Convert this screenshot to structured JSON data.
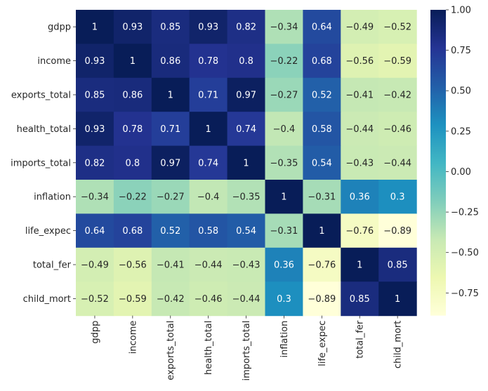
{
  "chart_data": {
    "type": "heatmap",
    "title": "",
    "xlabel": "",
    "ylabel": "",
    "x_categories": [
      "gdpp",
      "income",
      "exports_total",
      "health_total",
      "imports_total",
      "inflation",
      "life_expec",
      "total_fer",
      "child_mort"
    ],
    "y_categories": [
      "gdpp",
      "income",
      "exports_total",
      "health_total",
      "imports_total",
      "inflation",
      "life_expec",
      "total_fer",
      "child_mort"
    ],
    "values": [
      [
        1,
        0.93,
        0.85,
        0.93,
        0.82,
        -0.34,
        0.64,
        -0.49,
        -0.52
      ],
      [
        0.93,
        1,
        0.86,
        0.78,
        0.8,
        -0.22,
        0.68,
        -0.56,
        -0.59
      ],
      [
        0.85,
        0.86,
        1,
        0.71,
        0.97,
        -0.27,
        0.52,
        -0.41,
        -0.42
      ],
      [
        0.93,
        0.78,
        0.71,
        1,
        0.74,
        -0.4,
        0.58,
        -0.44,
        -0.46
      ],
      [
        0.82,
        0.8,
        0.97,
        0.74,
        1,
        -0.35,
        0.54,
        -0.43,
        -0.44
      ],
      [
        -0.34,
        -0.22,
        -0.27,
        -0.4,
        -0.35,
        1,
        -0.31,
        0.36,
        0.3
      ],
      [
        0.64,
        0.68,
        0.52,
        0.58,
        0.54,
        -0.31,
        1,
        -0.76,
        -0.89
      ],
      [
        -0.49,
        -0.56,
        -0.41,
        -0.44,
        -0.43,
        0.36,
        -0.76,
        1,
        0.85
      ],
      [
        -0.52,
        -0.59,
        -0.42,
        -0.46,
        -0.44,
        0.3,
        -0.89,
        0.85,
        1
      ]
    ],
    "colormap": "YlGnBu",
    "vmin": -0.89,
    "vmax": 1,
    "colorbar_ticks": [
      1.0,
      0.75,
      0.5,
      0.25,
      0.0,
      -0.25,
      -0.5,
      -0.75
    ],
    "colorbar_tick_labels": [
      "1.00",
      "0.75",
      "0.50",
      "0.25",
      "0.00",
      "−0.25",
      "−0.50",
      "−0.75"
    ],
    "annotations": true,
    "grid": false,
    "legend": "colorbar-right"
  }
}
